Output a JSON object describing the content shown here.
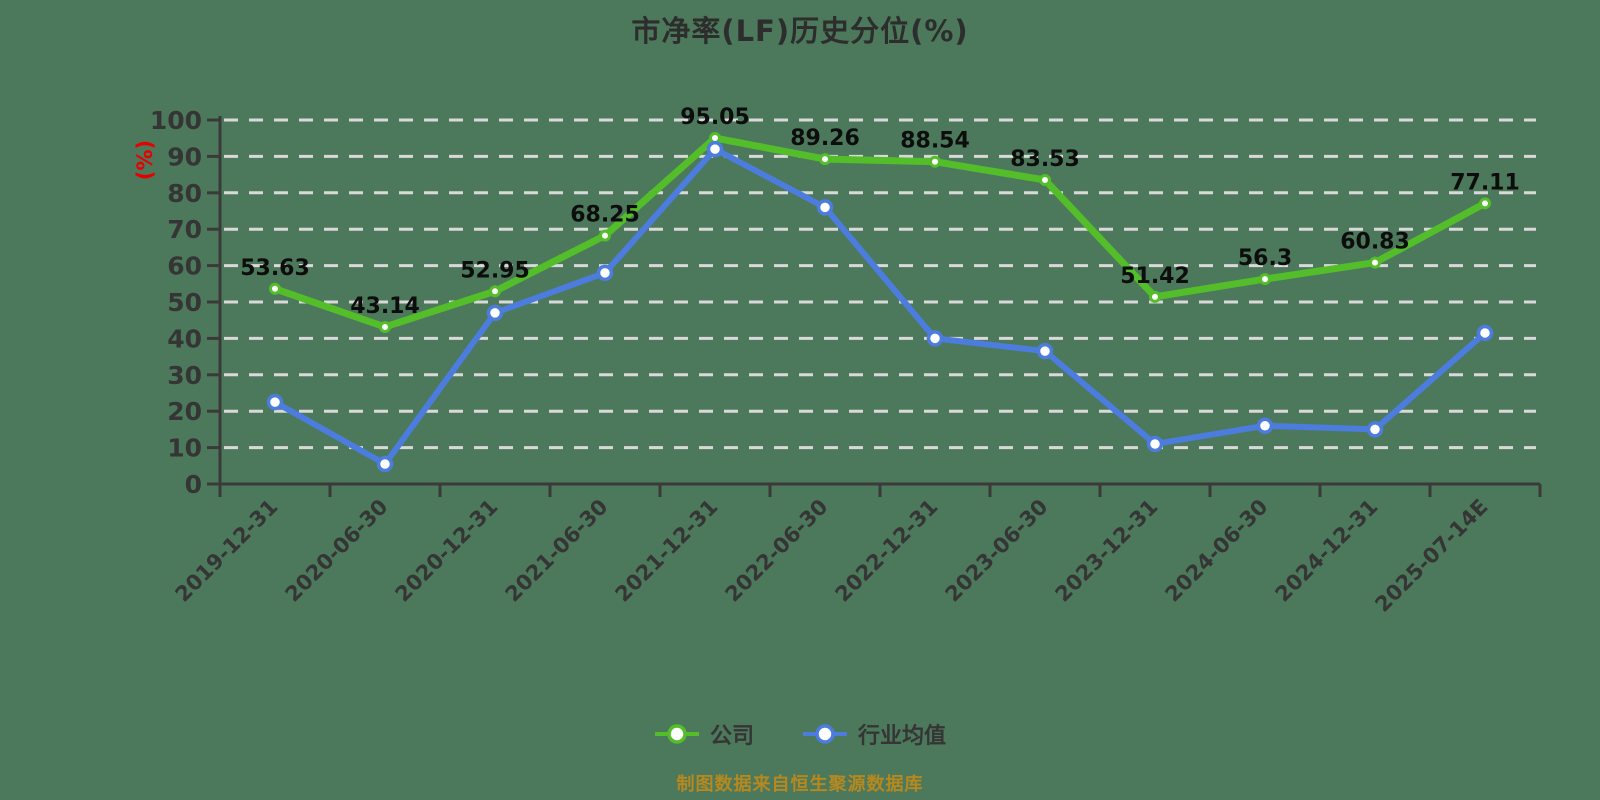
{
  "title": "市净率(LF)历史分位(%)",
  "source_note": "制图数据来自恒生聚源数据库",
  "colors": {
    "background": "#4C795B",
    "grid": "#D9D9D9",
    "axis": "#3A3A3A",
    "tick_label": "#353535",
    "title": "#2D2D2D",
    "data_label": "#0D0D0D",
    "axis_name": "#E60000",
    "company": "#53BE29",
    "industry": "#4B7CDE",
    "source_note": "#B5891F",
    "marker_fill": "#FFFFFF"
  },
  "y_axis": {
    "name": "(%)",
    "ticks": [
      0,
      10,
      20,
      30,
      40,
      50,
      60,
      70,
      80,
      90,
      100
    ]
  },
  "legend": {
    "items": [
      {
        "id": "company",
        "label": "公司",
        "color": "#53BE29"
      },
      {
        "id": "industry-average",
        "label": "行业均值",
        "color": "#4B7CDE"
      }
    ]
  },
  "chart_data": {
    "type": "line",
    "title": "市净率(LF)历史分位(%)",
    "categories": [
      "2019-12-31",
      "2020-06-30",
      "2020-12-31",
      "2021-06-30",
      "2021-12-31",
      "2022-06-30",
      "2022-12-31",
      "2023-06-30",
      "2023-12-31",
      "2024-06-30",
      "2024-12-31",
      "2025-07-14E"
    ],
    "series": [
      {
        "id": "company",
        "name": "公司",
        "color": "#53BE29",
        "values": [
          53.63,
          43.14,
          52.95,
          68.25,
          95.05,
          89.26,
          88.54,
          83.53,
          51.42,
          56.3,
          60.83,
          77.11
        ],
        "show_labels": true
      },
      {
        "id": "industry-average",
        "name": "行业均值",
        "color": "#4B7CDE",
        "values": [
          22.5,
          5.5,
          47,
          58,
          92,
          76,
          40,
          36.5,
          11,
          16,
          15,
          41.5
        ],
        "show_labels": false
      }
    ],
    "xlabel": "",
    "ylabel": "(%)",
    "ylim": [
      0,
      100
    ],
    "y_step": 10,
    "grid": "horizontal-dashed",
    "legend_position": "bottom"
  }
}
